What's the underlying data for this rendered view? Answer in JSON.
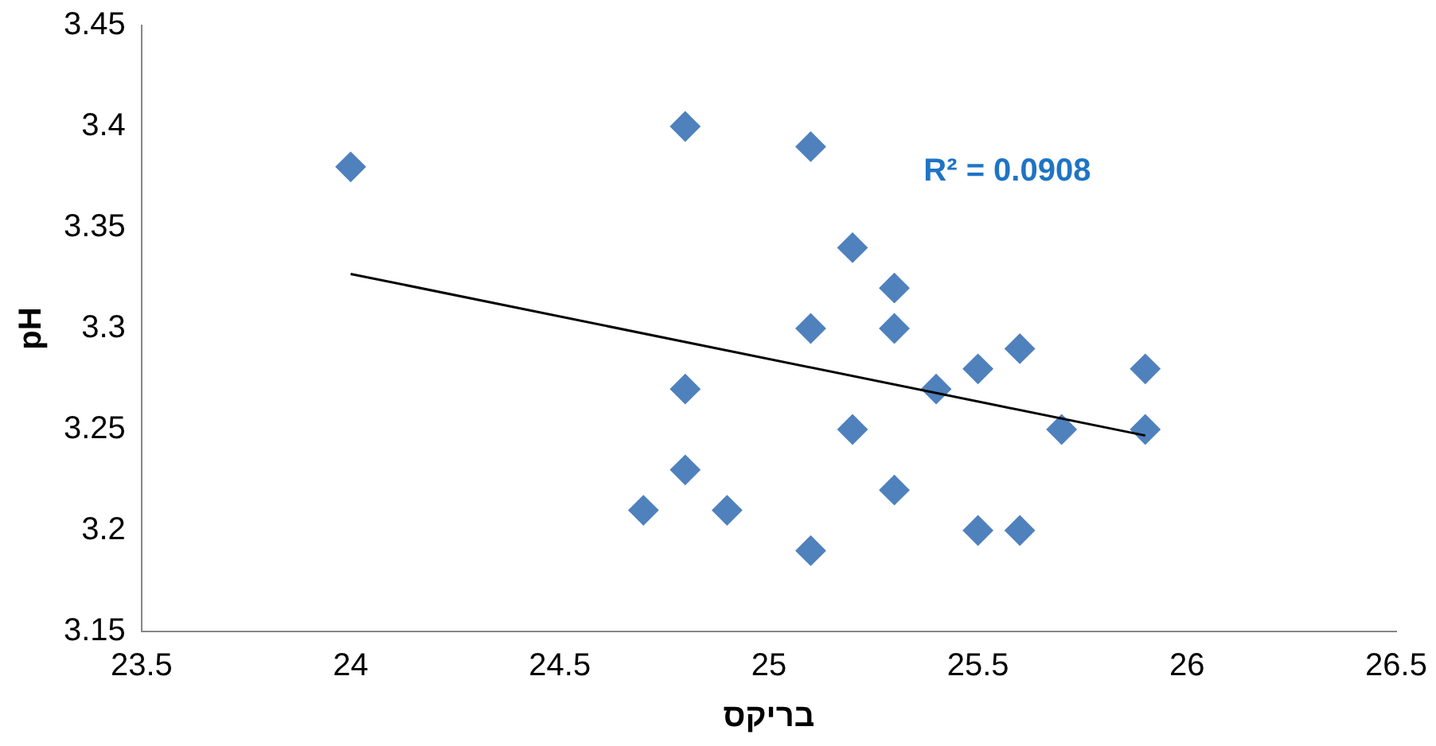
{
  "chart_data": {
    "type": "scatter",
    "xlabel": "בריקס",
    "ylabel": "pH",
    "xlim": [
      23.5,
      26.5
    ],
    "xticks": [
      23.5,
      24,
      24.5,
      25,
      25.5,
      26,
      26.5
    ],
    "ylim": [
      3.15,
      3.45
    ],
    "yticks": [
      3.15,
      3.2,
      3.25,
      3.3,
      3.35,
      3.4,
      3.45
    ],
    "grid": false,
    "legend": false,
    "marker": "diamond",
    "series": [
      {
        "color": "#4f81bd",
        "x": [
          24,
          24.8,
          25.1,
          25.2,
          25.3,
          25.1,
          25.3,
          25.5,
          25.6,
          25.9,
          25.4,
          24.8,
          25.2,
          25.7,
          25.9,
          24.8,
          25.3,
          24.7,
          24.9,
          25.5,
          25.6,
          25.1
        ],
        "values": [
          3.38,
          3.4,
          3.39,
          3.34,
          3.32,
          3.3,
          3.3,
          3.28,
          3.29,
          3.28,
          3.27,
          3.27,
          3.25,
          3.25,
          3.25,
          3.23,
          3.22,
          3.21,
          3.21,
          3.2,
          3.2,
          3.19
        ]
      },
      {
        "type": "line",
        "color": "#000000",
        "marker": "none",
        "x": [
          24,
          25.9
        ],
        "values": [
          3.327,
          3.247
        ]
      }
    ],
    "annotations": [
      "R² = 0.0908"
    ]
  }
}
